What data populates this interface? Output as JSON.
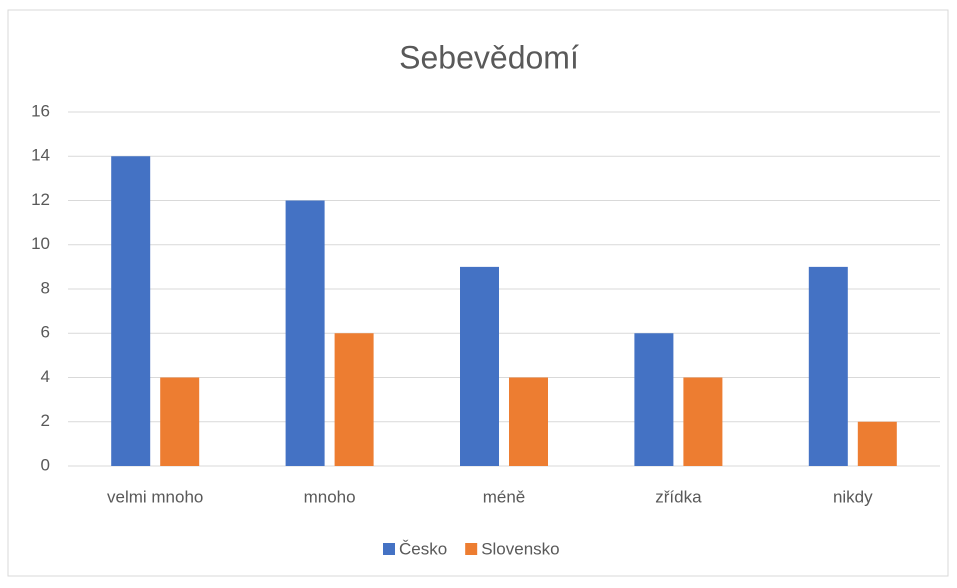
{
  "chart_data": {
    "type": "bar",
    "title": "Sebevědomí",
    "categories": [
      "velmi mnoho",
      "mnoho",
      "méně",
      "zřídka",
      "nikdy"
    ],
    "series": [
      {
        "name": "Česko",
        "color": "#4472c4",
        "values": [
          14,
          12,
          9,
          6,
          9
        ]
      },
      {
        "name": "Slovensko",
        "color": "#ed7d31",
        "values": [
          4,
          6,
          4,
          4,
          2
        ]
      }
    ],
    "ylim": [
      0,
      16
    ],
    "yticks": [
      0,
      2,
      4,
      6,
      8,
      10,
      12,
      14,
      16
    ],
    "grid": true,
    "legend": "bottom"
  }
}
